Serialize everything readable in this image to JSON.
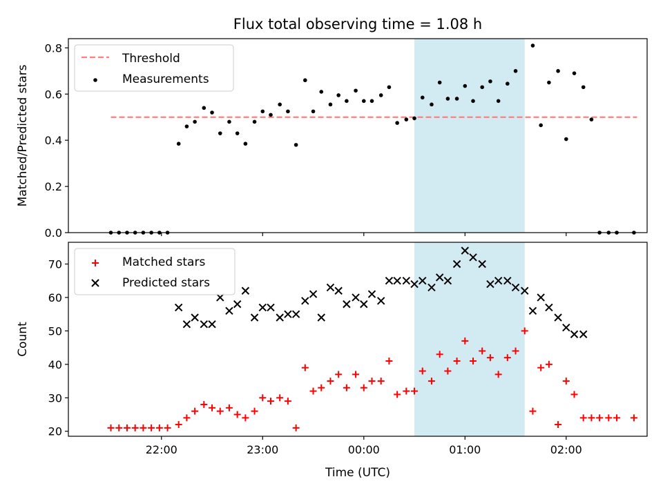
{
  "chart_data": [
    {
      "type": "scatter",
      "title": "Flux total observing time = 1.08 h",
      "xlabel": "",
      "ylabel": "Matched/Predicted stars",
      "ylim": [
        0.0,
        0.84
      ],
      "yticks": [
        "0.0",
        "0.2",
        "0.4",
        "0.6",
        "0.8"
      ],
      "shaded_span": {
        "x0": 24.5,
        "x1": 25.59,
        "color": "#add8e6"
      },
      "legend": {
        "position": "top-left",
        "entries": [
          "Threshold",
          "Measurements"
        ]
      },
      "series": [
        {
          "name": "Threshold",
          "kind": "dashed-line",
          "color": "#ff7f7f",
          "x": [
            21.5,
            26.7
          ],
          "y": [
            0.5,
            0.5
          ]
        },
        {
          "name": "Measurements",
          "kind": "dot",
          "color": "#000000",
          "x": [
            21.5,
            21.58,
            21.66,
            21.74,
            21.82,
            21.9,
            21.98,
            22.06,
            22.17,
            22.25,
            22.33,
            22.42,
            22.5,
            22.58,
            22.67,
            22.75,
            22.83,
            22.92,
            23.0,
            23.08,
            23.17,
            23.25,
            23.33,
            23.42,
            23.5,
            23.58,
            23.67,
            23.75,
            23.83,
            23.92,
            24.0,
            24.08,
            24.17,
            24.25,
            24.33,
            24.42,
            24.5,
            24.58,
            24.67,
            24.75,
            24.83,
            24.92,
            25.0,
            25.08,
            25.17,
            25.25,
            25.33,
            25.42,
            25.5,
            25.67,
            25.75,
            25.83,
            25.92,
            26.0,
            26.08,
            26.17,
            26.25,
            26.33,
            26.42,
            26.5,
            26.67
          ],
          "y": [
            0.0,
            0.0,
            0.0,
            0.0,
            0.0,
            0.0,
            0.0,
            0.0,
            0.385,
            0.46,
            0.48,
            0.54,
            0.52,
            0.43,
            0.48,
            0.43,
            0.385,
            0.48,
            0.525,
            0.51,
            0.555,
            0.525,
            0.38,
            0.66,
            0.525,
            0.61,
            0.555,
            0.595,
            0.57,
            0.615,
            0.57,
            0.57,
            0.595,
            0.63,
            0.475,
            0.49,
            0.495,
            0.585,
            0.555,
            0.65,
            0.58,
            0.58,
            0.635,
            0.57,
            0.63,
            0.655,
            0.57,
            0.645,
            0.7,
            0.81,
            0.465,
            0.65,
            0.7,
            0.405,
            0.69,
            0.63,
            0.49,
            0.0,
            0.0,
            0.0,
            0.0
          ]
        }
      ]
    },
    {
      "type": "scatter",
      "xlabel": "Time (UTC)",
      "ylabel": "Count",
      "ylim": [
        18.5,
        76.5
      ],
      "yticks": [
        "20",
        "30",
        "40",
        "50",
        "60",
        "70"
      ],
      "xlim": [
        21.08,
        26.8
      ],
      "xticks": [
        {
          "x": 22,
          "label": "22:00"
        },
        {
          "x": 23,
          "label": "23:00"
        },
        {
          "x": 24,
          "label": "00:00"
        },
        {
          "x": 25,
          "label": "01:00"
        },
        {
          "x": 26,
          "label": "02:00"
        }
      ],
      "shaded_span": {
        "x0": 24.5,
        "x1": 25.59,
        "color": "#add8e6"
      },
      "legend": {
        "position": "top-left",
        "entries": [
          "Matched stars",
          "Predicted stars"
        ]
      },
      "series": [
        {
          "name": "Matched stars",
          "kind": "plus",
          "color": "#ff0000",
          "x": [
            21.5,
            21.58,
            21.66,
            21.74,
            21.82,
            21.9,
            21.98,
            22.06,
            22.17,
            22.25,
            22.33,
            22.42,
            22.5,
            22.58,
            22.67,
            22.75,
            22.83,
            22.92,
            23.0,
            23.08,
            23.17,
            23.25,
            23.33,
            23.42,
            23.5,
            23.58,
            23.67,
            23.75,
            23.83,
            23.92,
            24.0,
            24.08,
            24.17,
            24.25,
            24.33,
            24.42,
            24.5,
            24.58,
            24.67,
            24.75,
            24.83,
            24.92,
            25.0,
            25.08,
            25.17,
            25.25,
            25.33,
            25.42,
            25.5,
            25.59,
            25.67,
            25.75,
            25.83,
            25.92,
            26.0,
            26.08,
            26.17,
            26.25,
            26.33,
            26.42,
            26.5,
            26.67
          ],
          "y": [
            21,
            21,
            21,
            21,
            21,
            21,
            21,
            21,
            22,
            24,
            26,
            28,
            27,
            26,
            27,
            25,
            24,
            26,
            30,
            29,
            30,
            29,
            21,
            39,
            32,
            33,
            35,
            37,
            33,
            37,
            33,
            35,
            35,
            41,
            31,
            32,
            32,
            38,
            35,
            43,
            38,
            41,
            47,
            41,
            44,
            42,
            37,
            42,
            44,
            50,
            26,
            39,
            40,
            22,
            35,
            31,
            24,
            24,
            24,
            24,
            24,
            24
          ]
        },
        {
          "name": "Predicted stars",
          "kind": "x",
          "color": "#000000",
          "x": [
            22.17,
            22.25,
            22.33,
            22.42,
            22.5,
            22.58,
            22.67,
            22.75,
            22.83,
            22.92,
            23.0,
            23.08,
            23.17,
            23.25,
            23.33,
            23.42,
            23.5,
            23.58,
            23.67,
            23.75,
            23.83,
            23.92,
            24.0,
            24.08,
            24.17,
            24.25,
            24.33,
            24.42,
            24.5,
            24.58,
            24.67,
            24.75,
            24.83,
            24.92,
            25.0,
            25.08,
            25.17,
            25.25,
            25.33,
            25.42,
            25.5,
            25.59,
            25.67,
            25.75,
            25.83,
            25.92,
            26.0,
            26.08,
            26.17
          ],
          "y": [
            57,
            52,
            54,
            52,
            52,
            60,
            56,
            58,
            62,
            54,
            57,
            57,
            54,
            55,
            55,
            59,
            61,
            54,
            63,
            62,
            58,
            60,
            58,
            61,
            59,
            65,
            65,
            65,
            64,
            65,
            63,
            66,
            65,
            70,
            74,
            72,
            70,
            64,
            65,
            65,
            63,
            62,
            56,
            60,
            57,
            54,
            51,
            49,
            49
          ]
        }
      ]
    }
  ]
}
